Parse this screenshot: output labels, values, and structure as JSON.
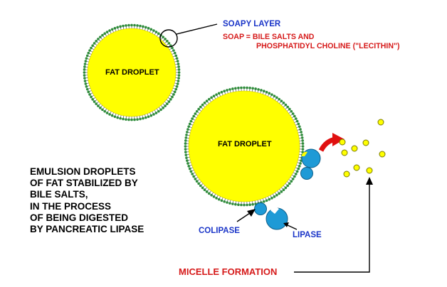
{
  "labels": {
    "soapy_layer": "SOAPY LAYER",
    "soap_line1": "SOAP = BILE SALTS AND",
    "soap_line2": "PHOSPHATIDYL CHOLINE (\"LECITHIN\")",
    "fat_droplet_1": "FAT DROPLET",
    "fat_droplet_2": "FAT DROPLET",
    "colipase": "COLIPASE",
    "lipase": "LIPASE",
    "micelle_formation": "MICELLE FORMATION"
  },
  "caption": [
    "EMULSION DROPLETS",
    "OF FAT STABILIZED BY",
    "BILE SALTS,",
    "IN THE PROCESS",
    "OF BEING DIGESTED",
    "BY PANCREATIC LIPASE"
  ],
  "colors": {
    "fat": "#ffff00",
    "lecithin_head": "#2e8b3a",
    "enzyme": "#1e9ad6",
    "micelle": "#ffff00",
    "label_blue": "#1a35c8",
    "label_red": "#d61a1a",
    "curved_arrow": "#e01010"
  }
}
